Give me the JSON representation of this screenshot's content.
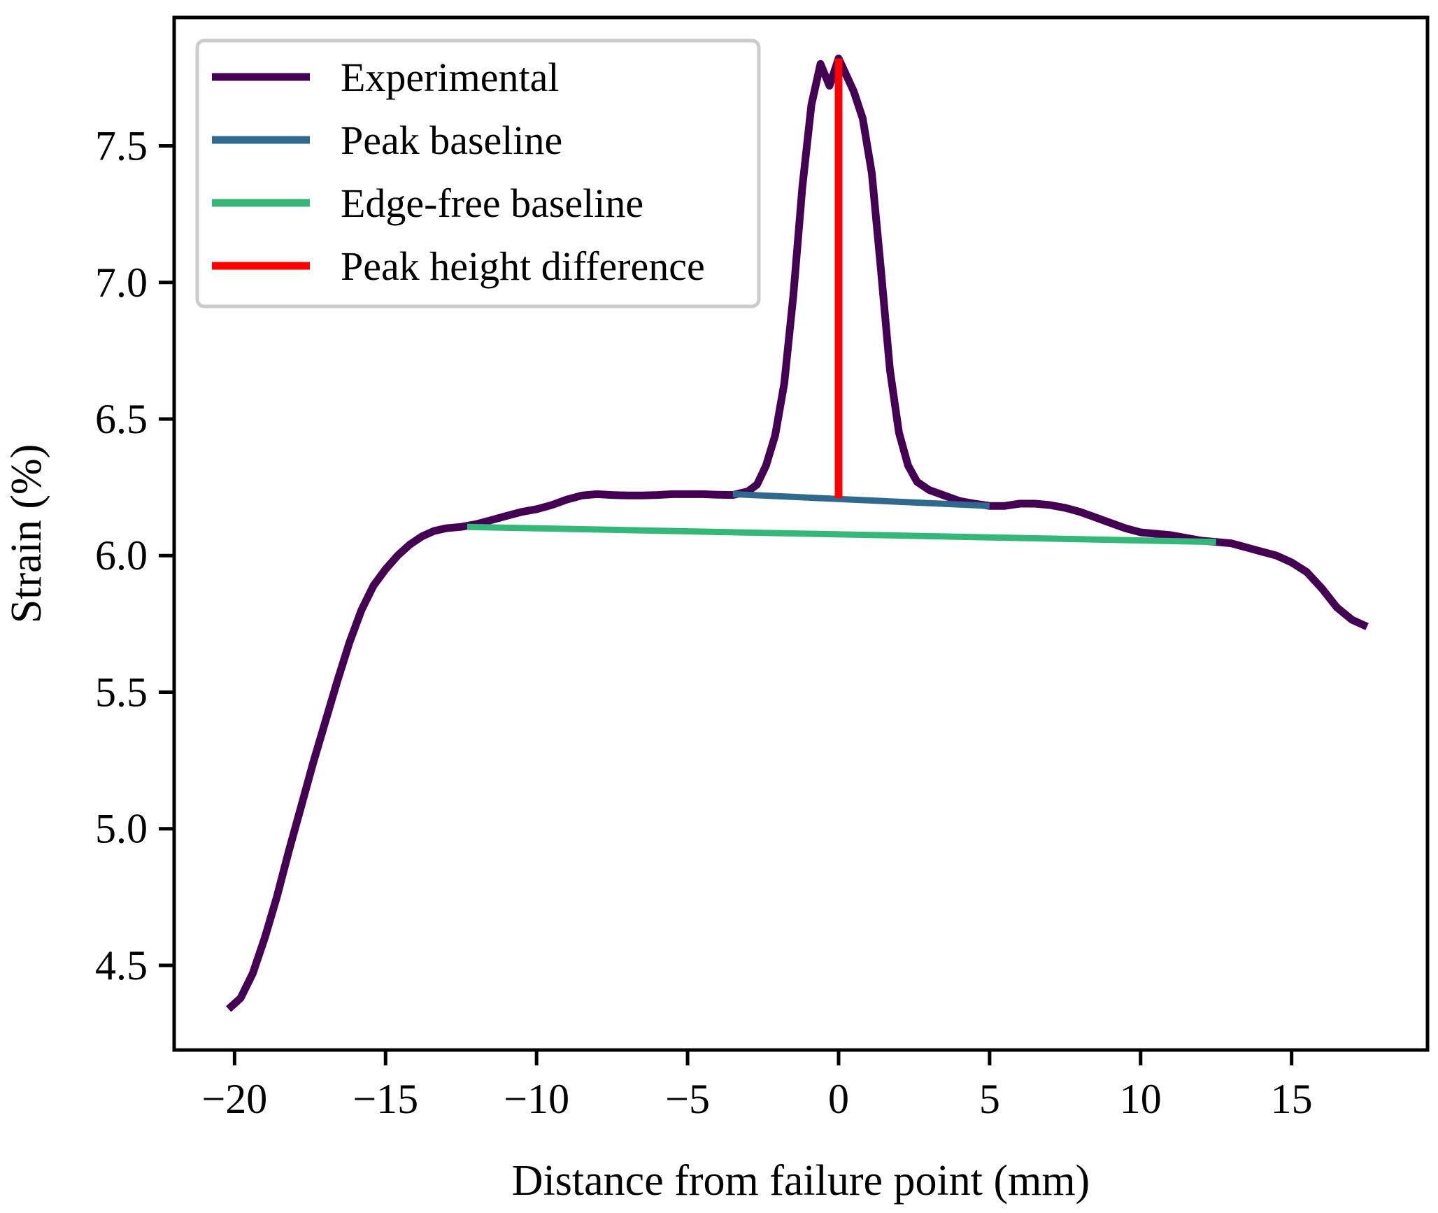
{
  "chart_data": {
    "type": "line",
    "title": "",
    "xlabel": "Distance from failure point (mm)",
    "ylabel": "Strain (%)",
    "xlim": [
      -22,
      19.5
    ],
    "ylim": [
      4.19,
      7.97
    ],
    "xticks": [
      -20,
      -15,
      -10,
      -5,
      0,
      5,
      10,
      15
    ],
    "xtick_labels": [
      "−20",
      "−15",
      "−10",
      "−5",
      "0",
      "5",
      "10",
      "15"
    ],
    "yticks": [
      4.5,
      5.0,
      5.5,
      6.0,
      6.5,
      7.0,
      7.5
    ],
    "ytick_labels": [
      "4.5",
      "5.0",
      "5.5",
      "6.0",
      "6.5",
      "7.0",
      "7.5"
    ],
    "grid": false,
    "legend_position": "top-left",
    "colors": {
      "experimental": "#440154",
      "peak_baseline": "#31688e",
      "edge_free_baseline": "#35b779",
      "peak_height_difference": "#ff0000",
      "axes": "#000000",
      "legend_border": "#cccccc"
    },
    "series": [
      {
        "name": "Experimental",
        "key": "experimental",
        "x": [
          -20.2,
          -19.8,
          -19.4,
          -19.0,
          -18.6,
          -18.2,
          -17.8,
          -17.4,
          -17.0,
          -16.6,
          -16.2,
          -15.8,
          -15.4,
          -15.0,
          -14.6,
          -14.2,
          -13.8,
          -13.4,
          -13.0,
          -12.5,
          -12.0,
          -11.5,
          -11.0,
          -10.5,
          -10.0,
          -9.5,
          -9.0,
          -8.5,
          -8.0,
          -7.5,
          -7.0,
          -6.5,
          -6.0,
          -5.5,
          -5.0,
          -4.5,
          -4.0,
          -3.5,
          -3.0,
          -2.7,
          -2.4,
          -2.1,
          -1.8,
          -1.5,
          -1.2,
          -0.9,
          -0.6,
          -0.3,
          0.0,
          0.5,
          0.8,
          1.1,
          1.4,
          1.7,
          2.0,
          2.3,
          2.6,
          3.0,
          3.5,
          4.0,
          4.5,
          5.0,
          5.5,
          6.0,
          6.5,
          7.0,
          7.5,
          8.0,
          8.5,
          9.0,
          9.5,
          10.0,
          10.5,
          11.0,
          11.5,
          12.0,
          12.5,
          13.0,
          13.5,
          14.0,
          14.5,
          15.0,
          15.5,
          16.0,
          16.5,
          17.0,
          17.5
        ],
        "y": [
          4.34,
          4.38,
          4.47,
          4.6,
          4.75,
          4.92,
          5.08,
          5.24,
          5.39,
          5.54,
          5.68,
          5.8,
          5.89,
          5.95,
          6.0,
          6.04,
          6.07,
          6.09,
          6.1,
          6.105,
          6.115,
          6.13,
          6.145,
          6.16,
          6.17,
          6.185,
          6.205,
          6.22,
          6.225,
          6.222,
          6.22,
          6.22,
          6.222,
          6.225,
          6.225,
          6.225,
          6.223,
          6.222,
          6.235,
          6.26,
          6.33,
          6.44,
          6.63,
          6.95,
          7.35,
          7.65,
          7.8,
          7.72,
          7.82,
          7.7,
          7.6,
          7.4,
          7.05,
          6.68,
          6.45,
          6.33,
          6.27,
          6.24,
          6.22,
          6.2,
          6.19,
          6.182,
          6.182,
          6.19,
          6.19,
          6.185,
          6.175,
          6.16,
          6.14,
          6.12,
          6.1,
          6.085,
          6.08,
          6.075,
          6.065,
          6.055,
          6.05,
          6.045,
          6.03,
          6.015,
          6.0,
          5.975,
          5.94,
          5.88,
          5.81,
          5.765,
          5.74
        ]
      },
      {
        "name": "Peak baseline",
        "key": "peak_baseline",
        "x": [
          -3.5,
          5.0
        ],
        "y": [
          6.225,
          6.182
        ]
      },
      {
        "name": "Edge-free baseline",
        "key": "edge_free_baseline",
        "x": [
          -12.3,
          12.5
        ],
        "y": [
          6.105,
          6.05
        ]
      },
      {
        "name": "Peak height difference",
        "key": "peak_height_difference",
        "x": [
          0.0,
          0.0
        ],
        "y": [
          6.21,
          7.82
        ]
      }
    ],
    "legend": [
      {
        "label": "Experimental",
        "key": "experimental"
      },
      {
        "label": "Peak baseline",
        "key": "peak_baseline"
      },
      {
        "label": "Edge-free baseline",
        "key": "edge_free_baseline"
      },
      {
        "label": "Peak height difference",
        "key": "peak_height_difference"
      }
    ]
  }
}
